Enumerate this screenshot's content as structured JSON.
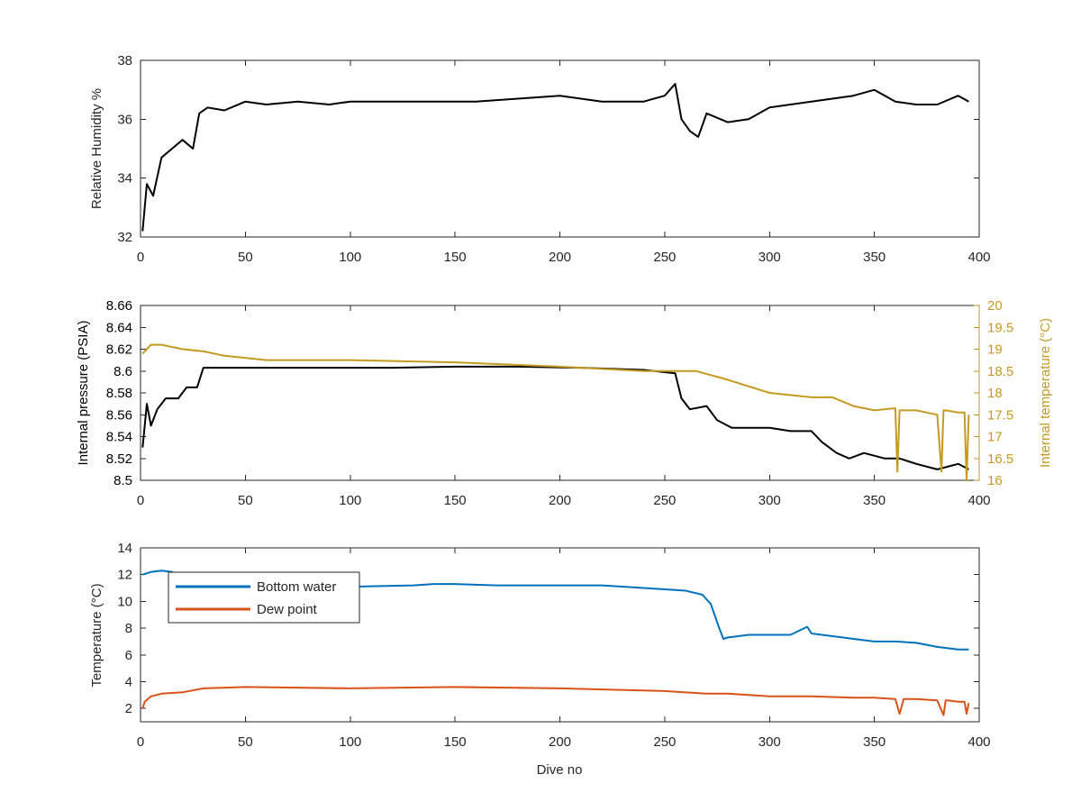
{
  "chart_data": [
    {
      "type": "line",
      "title": "",
      "xlabel": "",
      "ylabel": "Relative Humidity %",
      "xlim": [
        0,
        400
      ],
      "ylim": [
        32,
        38
      ],
      "xticks": [
        0,
        50,
        100,
        150,
        200,
        250,
        300,
        350,
        400
      ],
      "yticks": [
        32,
        34,
        36,
        38
      ],
      "grid": false,
      "series": [
        {
          "color": "#000000",
          "x": [
            1,
            3,
            6,
            10,
            15,
            20,
            25,
            28,
            32,
            40,
            50,
            60,
            75,
            90,
            100,
            120,
            140,
            160,
            180,
            200,
            220,
            240,
            250,
            255,
            258,
            262,
            266,
            270,
            280,
            290,
            300,
            320,
            340,
            350,
            360,
            370,
            380,
            390,
            395
          ],
          "y": [
            32.2,
            33.8,
            33.4,
            34.7,
            35.0,
            35.3,
            35.0,
            36.2,
            36.4,
            36.3,
            36.6,
            36.5,
            36.6,
            36.5,
            36.6,
            36.6,
            36.6,
            36.6,
            36.7,
            36.8,
            36.6,
            36.6,
            36.8,
            37.2,
            36.0,
            35.6,
            35.4,
            36.2,
            35.9,
            36.0,
            36.4,
            36.6,
            36.8,
            37.0,
            36.6,
            36.5,
            36.5,
            36.8,
            36.6
          ]
        }
      ]
    },
    {
      "type": "line",
      "title": "",
      "xlabel": "",
      "ylabel": "Internal pressure (PSIA)",
      "ylabel_right": "Internal temperature (°C)",
      "xlim": [
        0,
        400
      ],
      "ylim": [
        8.5,
        8.66
      ],
      "ylim_right": [
        16,
        20
      ],
      "xticks": [
        0,
        50,
        100,
        150,
        200,
        250,
        300,
        350,
        400
      ],
      "yticks": [
        8.5,
        8.52,
        8.54,
        8.56,
        8.58,
        8.6,
        8.62,
        8.64,
        8.66
      ],
      "yticks_right": [
        16,
        16.5,
        17,
        17.5,
        18,
        18.5,
        19,
        19.5,
        20
      ],
      "yticklabels_right": [
        "16",
        "16.5",
        "17",
        "17.5",
        "18",
        "18.5",
        "19",
        "19.5",
        "20"
      ],
      "grid": false,
      "series": [
        {
          "axis": "left",
          "color": "#000000",
          "x": [
            1,
            3,
            5,
            8,
            12,
            18,
            22,
            27,
            30,
            60,
            90,
            120,
            150,
            180,
            210,
            240,
            255,
            258,
            262,
            270,
            275,
            282,
            290,
            300,
            310,
            320,
            325,
            332,
            338,
            345,
            355,
            362,
            370,
            380,
            390,
            395
          ],
          "y": [
            8.53,
            8.57,
            8.55,
            8.565,
            8.575,
            8.575,
            8.585,
            8.585,
            8.603,
            8.603,
            8.603,
            8.603,
            8.604,
            8.604,
            8.603,
            8.601,
            8.598,
            8.575,
            8.565,
            8.568,
            8.555,
            8.548,
            8.548,
            8.548,
            8.545,
            8.545,
            8.535,
            8.525,
            8.52,
            8.525,
            8.52,
            8.52,
            8.515,
            8.51,
            8.515,
            8.51
          ]
        },
        {
          "axis": "right",
          "color": "#c49a21",
          "x": [
            1,
            5,
            10,
            20,
            30,
            40,
            60,
            100,
            150,
            200,
            240,
            255,
            265,
            280,
            300,
            320,
            330,
            340,
            350,
            360,
            361,
            362,
            363,
            370,
            380,
            382,
            383,
            384,
            390,
            393,
            394,
            395
          ],
          "y": [
            18.9,
            19.1,
            19.1,
            19.0,
            18.95,
            18.85,
            18.75,
            18.75,
            18.7,
            18.6,
            18.5,
            18.5,
            18.5,
            18.3,
            18.0,
            17.9,
            17.9,
            17.7,
            17.6,
            17.65,
            16.2,
            17.6,
            17.6,
            17.6,
            17.5,
            16.2,
            17.6,
            17.6,
            17.55,
            17.55,
            16.0,
            17.5
          ]
        }
      ]
    },
    {
      "type": "line",
      "title": "",
      "xlabel": "Dive no",
      "ylabel": "Temperature (°C)",
      "xlim": [
        0,
        400
      ],
      "ylim": [
        1,
        14
      ],
      "xticks": [
        0,
        50,
        100,
        150,
        200,
        250,
        300,
        350,
        400
      ],
      "yticks": [
        2,
        4,
        6,
        8,
        10,
        12,
        14
      ],
      "grid": false,
      "legend_position": "top-left",
      "series": [
        {
          "name": "Bottom water",
          "color": "#0072bd",
          "x": [
            1,
            5,
            10,
            15,
            20,
            30,
            50,
            80,
            100,
            130,
            140,
            150,
            170,
            200,
            220,
            240,
            260,
            268,
            272,
            276,
            278,
            280,
            290,
            300,
            310,
            318,
            320,
            330,
            340,
            350,
            360,
            370,
            380,
            390,
            395
          ],
          "y": [
            12.0,
            12.2,
            12.3,
            12.2,
            11.9,
            11.5,
            11.3,
            11.2,
            11.1,
            11.2,
            11.3,
            11.3,
            11.2,
            11.2,
            11.2,
            11.0,
            10.8,
            10.5,
            9.8,
            8.0,
            7.2,
            7.3,
            7.5,
            7.5,
            7.5,
            8.1,
            7.6,
            7.4,
            7.2,
            7.0,
            7.0,
            6.9,
            6.6,
            6.4,
            6.4
          ]
        },
        {
          "name": "Dew point",
          "color": "#d95319",
          "x": [
            1,
            2,
            5,
            10,
            20,
            30,
            50,
            100,
            150,
            200,
            250,
            270,
            280,
            300,
            320,
            340,
            350,
            360,
            362,
            364,
            370,
            380,
            383,
            384,
            385,
            390,
            393,
            394,
            395
          ],
          "y": [
            2.0,
            2.5,
            2.9,
            3.1,
            3.2,
            3.5,
            3.6,
            3.5,
            3.6,
            3.5,
            3.3,
            3.1,
            3.1,
            2.9,
            2.9,
            2.8,
            2.8,
            2.7,
            1.6,
            2.7,
            2.7,
            2.6,
            1.5,
            2.6,
            2.6,
            2.5,
            2.5,
            1.6,
            2.4
          ]
        }
      ]
    }
  ]
}
